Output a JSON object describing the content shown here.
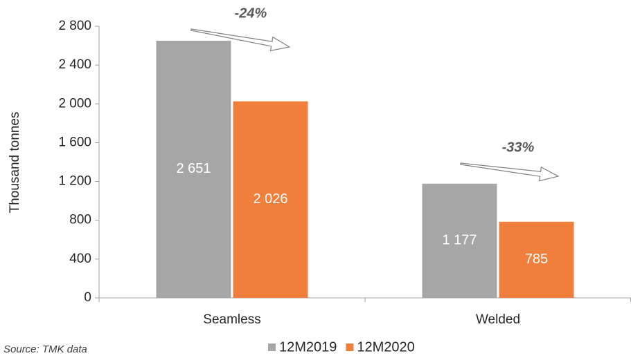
{
  "chart_data": {
    "type": "bar",
    "y_label": "Thousand tonnes",
    "categories": [
      "Seamless",
      "Welded"
    ],
    "series": [
      {
        "name": "12M2019",
        "color": "#a6a6a6",
        "values": [
          2651,
          1177
        ],
        "value_labels": [
          "2 651",
          "1 177"
        ]
      },
      {
        "name": "12M2020",
        "color": "#f07f3c",
        "values": [
          2026,
          785
        ],
        "value_labels": [
          "2 026",
          "785"
        ]
      }
    ],
    "ylim": [
      0,
      2800
    ],
    "yticks": [
      0,
      400,
      800,
      {
        "value": 1200,
        "label": "1 200"
      },
      {
        "value": 1600,
        "label": "1 600"
      },
      {
        "value": 2000,
        "label": "2 000"
      },
      {
        "value": 2400,
        "label": "2 400"
      },
      {
        "value": 2800,
        "label": "2 800"
      }
    ],
    "annotations": [
      "-24%",
      "-33%"
    ],
    "source": "Source: TMK data",
    "legend": "bottom"
  }
}
